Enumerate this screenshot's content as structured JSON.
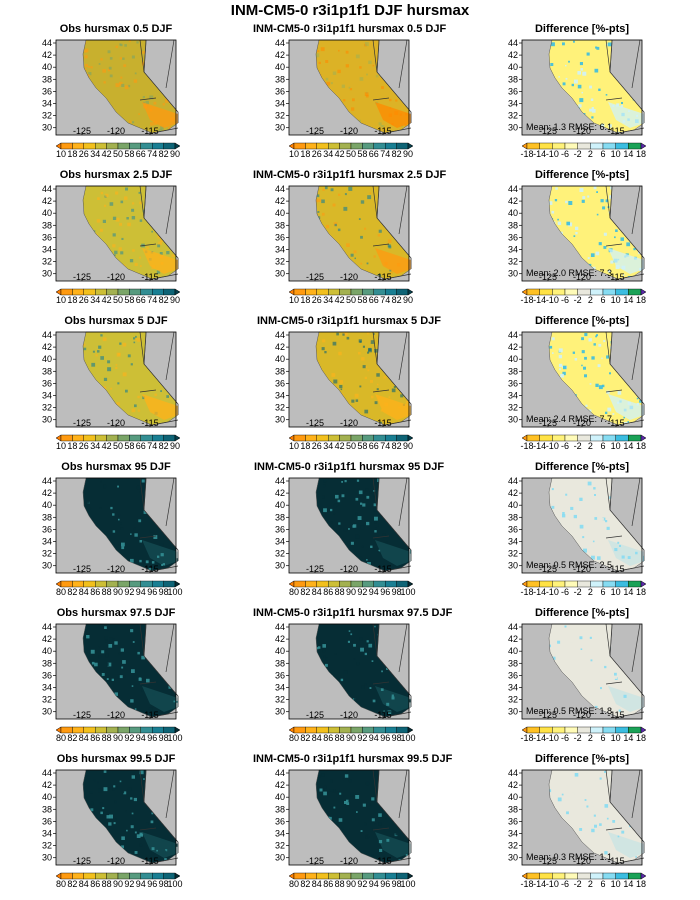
{
  "title": "INM-CM5-0 r3i1p1f1 DJF hursmax",
  "map": {
    "lat_ticks": [
      "44",
      "42",
      "40",
      "38",
      "36",
      "34",
      "32",
      "30"
    ],
    "lon_ticks": [
      "-125",
      "-120",
      "-115"
    ],
    "land_color": "#bdbdbd",
    "border_color": "#333333"
  },
  "scales": {
    "low": {
      "labels": [
        "10",
        "18",
        "26",
        "34",
        "42",
        "50",
        "58",
        "66",
        "74",
        "82",
        "90"
      ],
      "colors": [
        "#ff7f00",
        "#ff9a10",
        "#ffb21a",
        "#f2c01d",
        "#cdbf36",
        "#a3b150",
        "#7aa568",
        "#579b7f",
        "#338e93",
        "#197f93",
        "#0e6476",
        "#063f4c"
      ]
    },
    "high": {
      "labels": [
        "80",
        "82",
        "84",
        "86",
        "88",
        "90",
        "92",
        "94",
        "96",
        "98",
        "100"
      ],
      "colors": [
        "#ff7f00",
        "#ff9a10",
        "#ffb21a",
        "#f2c01d",
        "#cdbf36",
        "#a3b150",
        "#7aa568",
        "#579b7f",
        "#338e93",
        "#197f93",
        "#0e6476",
        "#062d35"
      ]
    },
    "diff": {
      "labels": [
        "-18",
        "-14",
        "-10",
        "-6",
        "-2",
        "2",
        "6",
        "10",
        "14",
        "18"
      ],
      "colors": [
        "#ff9a10",
        "#ffc124",
        "#ffe245",
        "#fff27a",
        "#fffbb8",
        "#e9e8dd",
        "#cff2fb",
        "#86dcf2",
        "#3bbde0",
        "#1aa257",
        "#5a2aa8"
      ]
    }
  },
  "rows": [
    {
      "obs_title": "Obs hursmax 0.5 DJF",
      "model_title": "INM-CM5-0 r3i1p1f1 hursmax 0.5 DJF",
      "diff_title": "Difference [%-pts]",
      "scale": "low",
      "field": {
        "main": "#c8b02e",
        "accent": "#ff9a10",
        "wet": "#7aa568"
      },
      "model_field": {
        "main": "#dcb226",
        "accent": "#ff8a00",
        "wet": "#a3b150"
      },
      "diff_field": {
        "main": "#fff27a",
        "accent": "#cff2fb",
        "wet": "#3bbde0"
      },
      "mean": "1.3",
      "rmse": "6.1"
    },
    {
      "obs_title": "Obs hursmax 2.5 DJF",
      "model_title": "INM-CM5-0 r3i1p1f1 hursmax 2.5 DJF",
      "diff_title": "Difference [%-pts]",
      "scale": "low",
      "field": {
        "main": "#cdbf36",
        "accent": "#ffb21a",
        "wet": "#338e93"
      },
      "model_field": {
        "main": "#d9b828",
        "accent": "#ff9a10",
        "wet": "#197f93"
      },
      "diff_field": {
        "main": "#fff27a",
        "accent": "#cff2fb",
        "wet": "#3bbde0"
      },
      "mean": "2.0",
      "rmse": "7.3"
    },
    {
      "obs_title": "Obs hursmax 5 DJF",
      "model_title": "INM-CM5-0 r3i1p1f1 hursmax 5 DJF",
      "diff_title": "Difference [%-pts]",
      "scale": "low",
      "field": {
        "main": "#cdbf36",
        "accent": "#ffb21a",
        "wet": "#197f93"
      },
      "model_field": {
        "main": "#d9b828",
        "accent": "#ffb21a",
        "wet": "#0e6476"
      },
      "diff_field": {
        "main": "#fff27a",
        "accent": "#cff2fb",
        "wet": "#3bbde0"
      },
      "mean": "2.4",
      "rmse": "7.7"
    },
    {
      "obs_title": "Obs hursmax 95 DJF",
      "model_title": "INM-CM5-0 r3i1p1f1 hursmax 95 DJF",
      "diff_title": "Difference [%-pts]",
      "scale": "high",
      "field": {
        "main": "#062d35",
        "accent": "#338e93",
        "wet": "#062d35"
      },
      "model_field": {
        "main": "#062d35",
        "accent": "#338e93",
        "wet": "#062d35"
      },
      "diff_field": {
        "main": "#e9e8dd",
        "accent": "#86dcf2",
        "wet": "#e9e8dd"
      },
      "mean": "0.5",
      "rmse": "2.5"
    },
    {
      "obs_title": "Obs hursmax 97.5 DJF",
      "model_title": "INM-CM5-0 r3i1p1f1 hursmax 97.5 DJF",
      "diff_title": "Difference [%-pts]",
      "scale": "high",
      "field": {
        "main": "#062d35",
        "accent": "#338e93",
        "wet": "#062d35"
      },
      "model_field": {
        "main": "#062d35",
        "accent": "#338e93",
        "wet": "#062d35"
      },
      "diff_field": {
        "main": "#e9e8dd",
        "accent": "#86dcf2",
        "wet": "#e9e8dd"
      },
      "mean": "0.5",
      "rmse": "1.8"
    },
    {
      "obs_title": "Obs hursmax 99.5 DJF",
      "model_title": "INM-CM5-0 r3i1p1f1 hursmax 99.5 DJF",
      "diff_title": "Difference [%-pts]",
      "scale": "high",
      "field": {
        "main": "#062d35",
        "accent": "#338e93",
        "wet": "#062d35"
      },
      "model_field": {
        "main": "#062d35",
        "accent": "#338e93",
        "wet": "#062d35"
      },
      "diff_field": {
        "main": "#e9e8dd",
        "accent": "#86dcf2",
        "wet": "#e9e8dd"
      },
      "mean": "0.3",
      "rmse": "1.1"
    }
  ],
  "stats_labels": {
    "mean": "Mean:",
    "rmse": "RMSE:"
  }
}
